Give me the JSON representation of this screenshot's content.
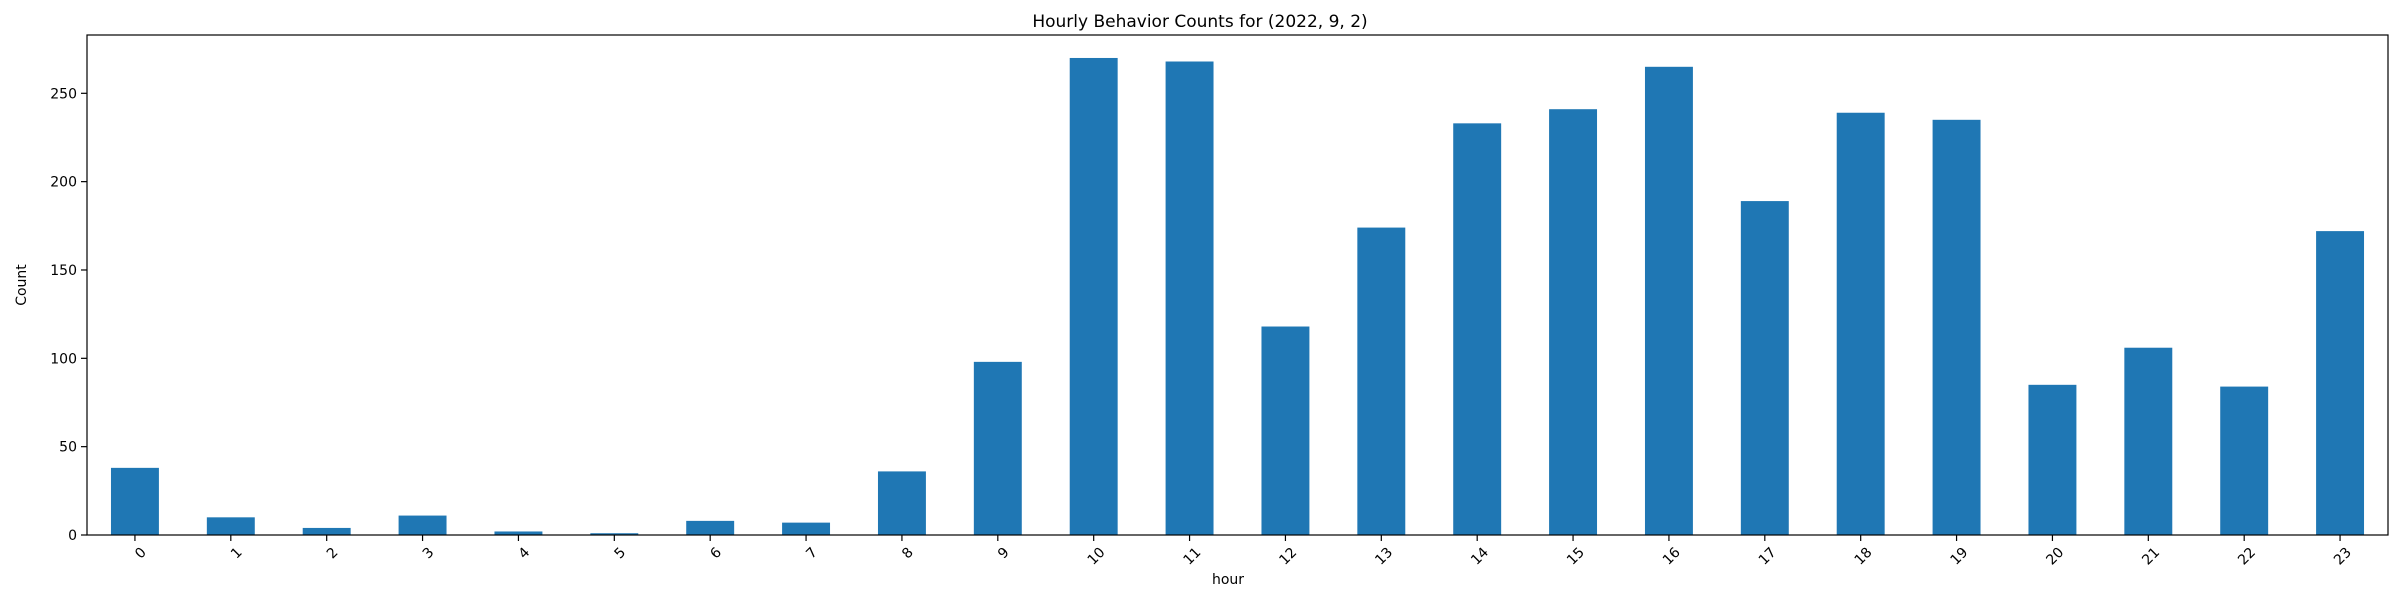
{
  "chart_data": {
    "type": "bar",
    "title": "Hourly Behavior Counts for (2022, 9, 2)",
    "xlabel": "hour",
    "ylabel": "Count",
    "categories": [
      "0",
      "1",
      "2",
      "3",
      "4",
      "5",
      "6",
      "7",
      "8",
      "9",
      "10",
      "11",
      "12",
      "13",
      "14",
      "15",
      "16",
      "17",
      "18",
      "19",
      "20",
      "21",
      "22",
      "23"
    ],
    "values": [
      38,
      10,
      4,
      11,
      2,
      1,
      8,
      7,
      36,
      98,
      270,
      268,
      118,
      174,
      233,
      241,
      265,
      189,
      239,
      235,
      85,
      106,
      84,
      172
    ],
    "ylim": [
      0,
      283
    ],
    "yticks": [
      0,
      50,
      100,
      150,
      200,
      250
    ],
    "xtick_rotation": 45,
    "grid": false,
    "bar_color": "#1f77b4"
  }
}
